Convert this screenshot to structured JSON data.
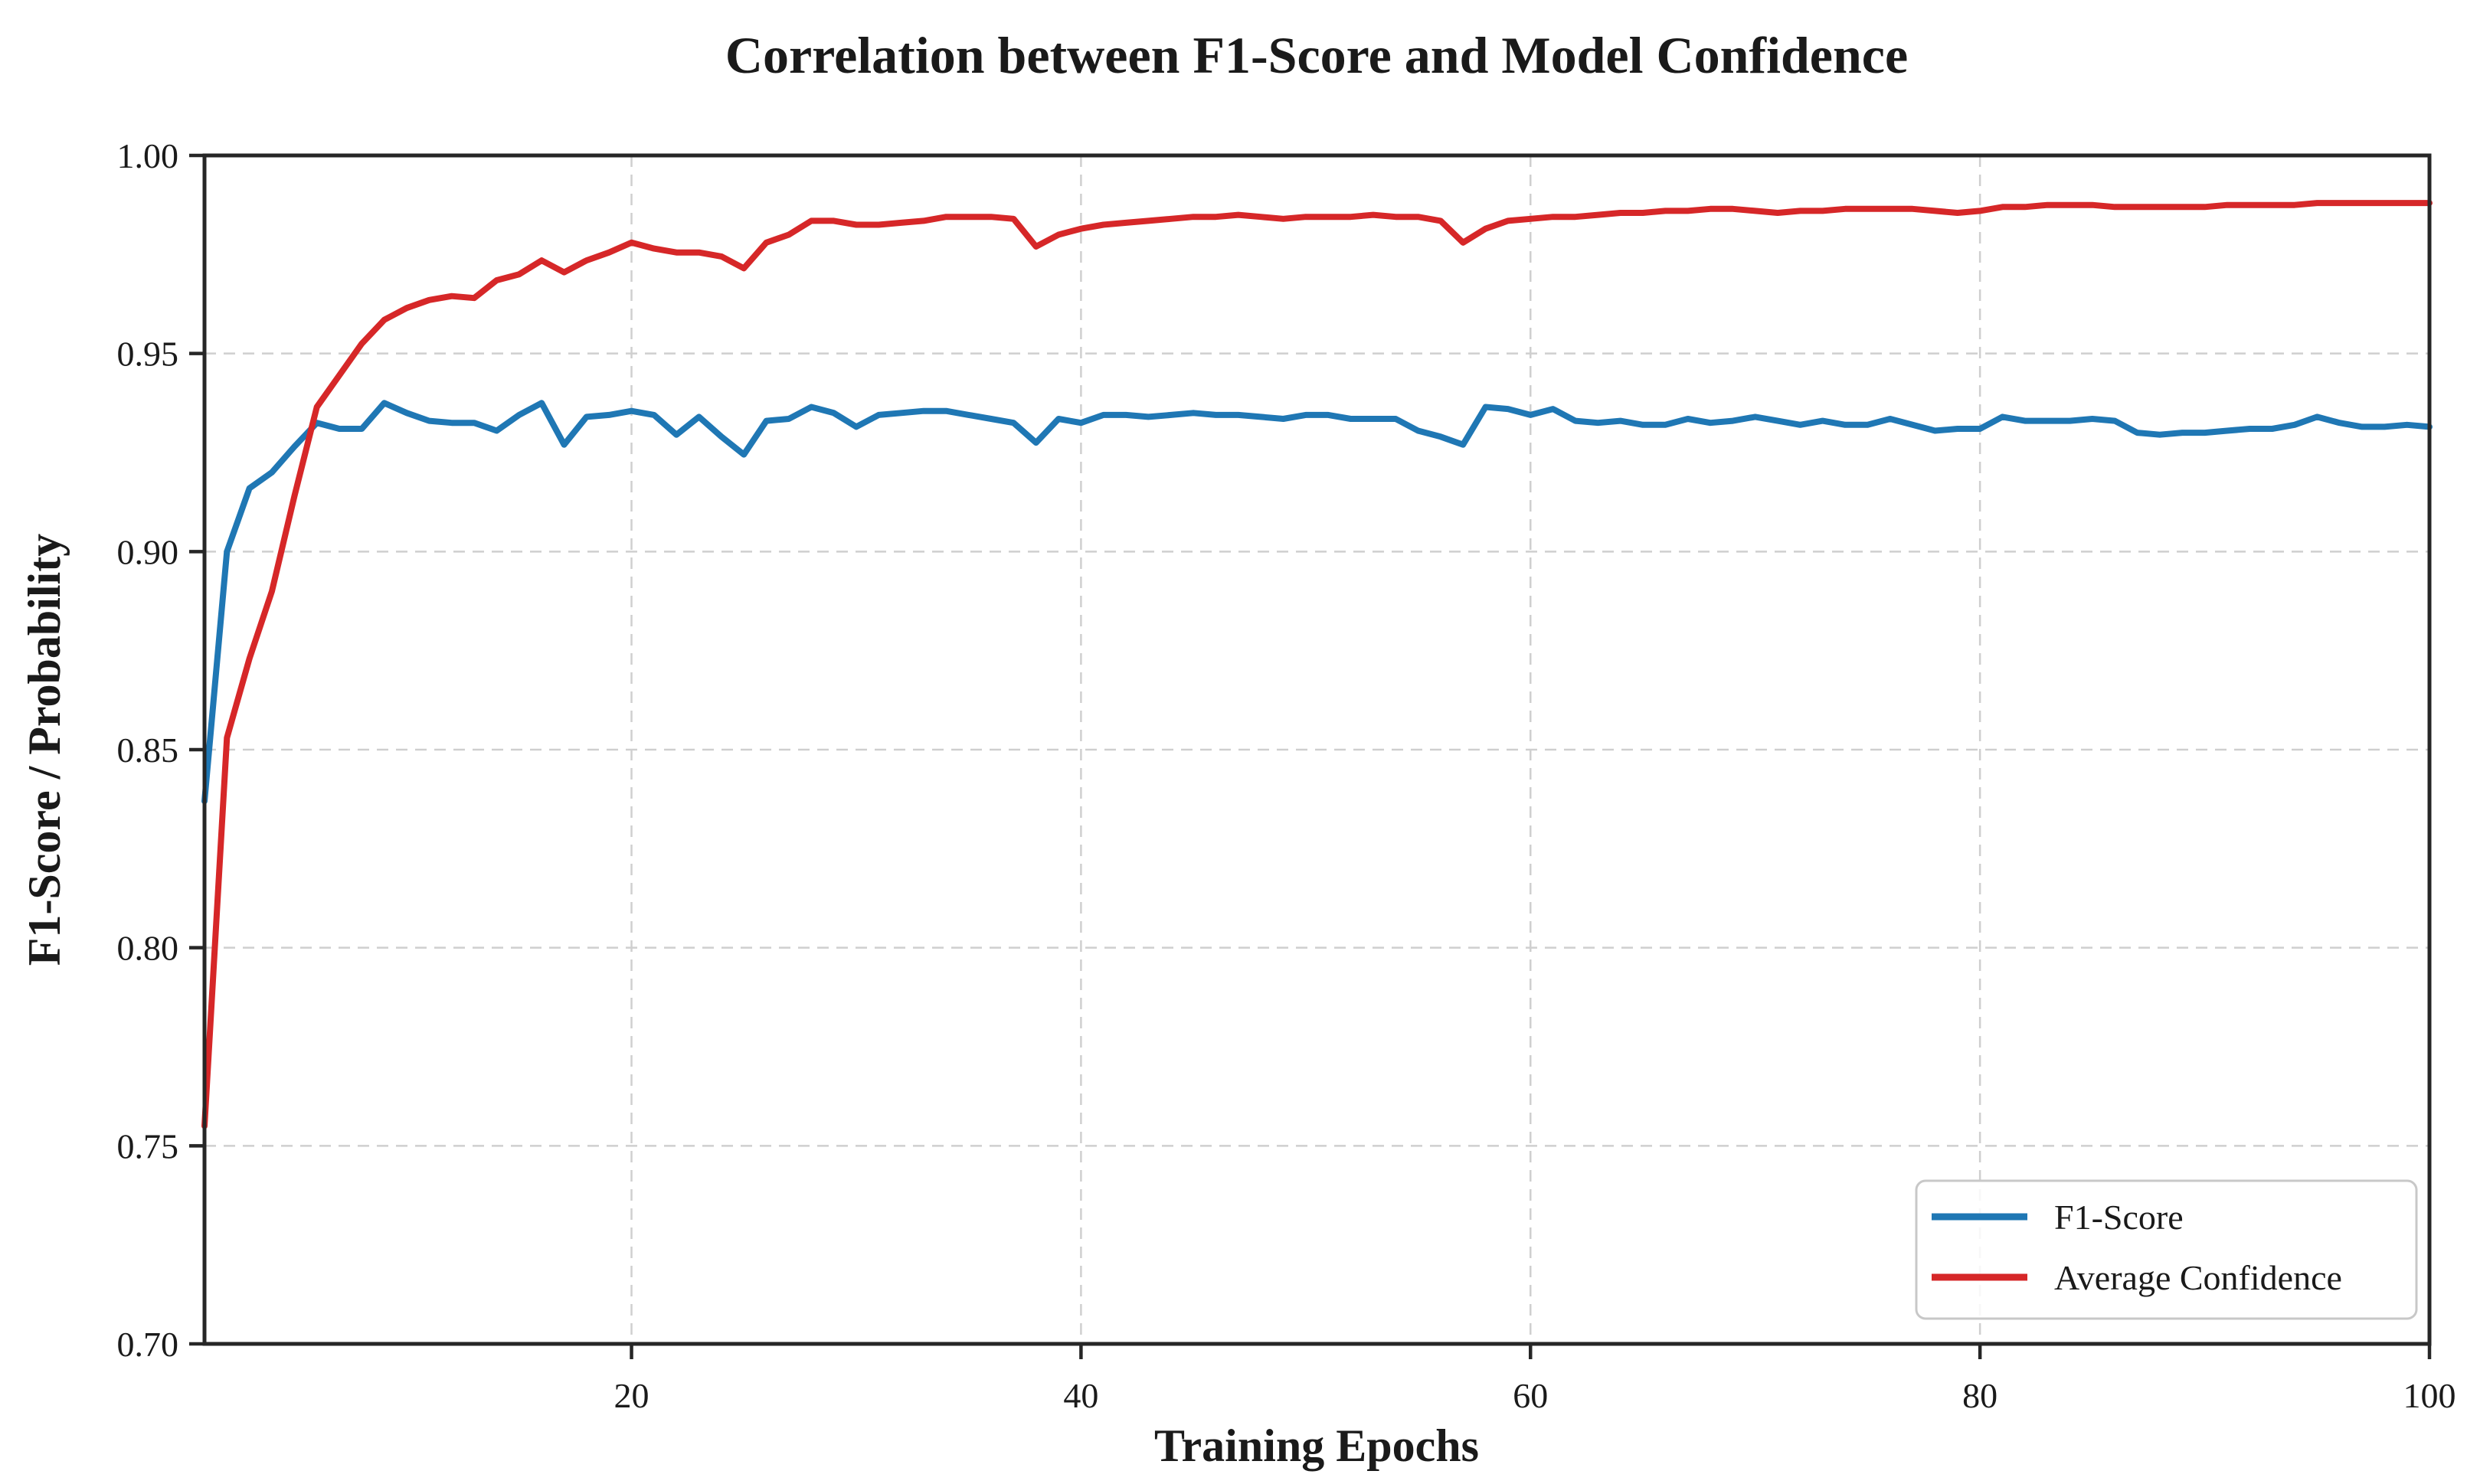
{
  "page": {
    "background": "#ffffff"
  },
  "chart_data": {
    "type": "line",
    "title": "Correlation between F1-Score and Model Confidence",
    "xlabel": "Training Epochs",
    "ylabel": "F1-Score / Probability",
    "xlim": [
      1,
      100
    ],
    "ylim": [
      0.7,
      1.0
    ],
    "xticks": [
      20,
      40,
      60,
      80,
      100
    ],
    "xtick_labels": [
      "20",
      "40",
      "60",
      "80",
      "100"
    ],
    "yticks": [
      0.7,
      0.75,
      0.8,
      0.85,
      0.9,
      0.95,
      1.0
    ],
    "ytick_labels": [
      "0.70",
      "0.75",
      "0.80",
      "0.85",
      "0.90",
      "0.95",
      "1.00"
    ],
    "grid": "dashed",
    "grid_color": "#cfcfcf",
    "axis_color": "#262626",
    "text_color": "#1a1a1a",
    "background_color": "#ffffff",
    "legend_position": "lower right",
    "legend_border_color": "#c8c8c8",
    "legend_background": "rgba(255,255,255,0.85)",
    "x": [
      1,
      2,
      3,
      4,
      5,
      6,
      7,
      8,
      9,
      10,
      11,
      12,
      13,
      14,
      15,
      16,
      17,
      18,
      19,
      20,
      21,
      22,
      23,
      24,
      25,
      26,
      27,
      28,
      29,
      30,
      31,
      32,
      33,
      34,
      35,
      36,
      37,
      38,
      39,
      40,
      41,
      42,
      43,
      44,
      45,
      46,
      47,
      48,
      49,
      50,
      51,
      52,
      53,
      54,
      55,
      56,
      57,
      58,
      59,
      60,
      61,
      62,
      63,
      64,
      65,
      66,
      67,
      68,
      69,
      70,
      71,
      72,
      73,
      74,
      75,
      76,
      77,
      78,
      79,
      80,
      81,
      82,
      83,
      84,
      85,
      86,
      87,
      88,
      89,
      90,
      91,
      92,
      93,
      94,
      95,
      96,
      97,
      98,
      99,
      100
    ],
    "series": [
      {
        "name": "F1-Score",
        "color": "#1f77b4",
        "values": [
          0.837,
          0.9,
          0.916,
          0.92,
          0.9265,
          0.9325,
          0.931,
          0.931,
          0.9375,
          0.935,
          0.933,
          0.9325,
          0.9325,
          0.9305,
          0.9345,
          0.9375,
          0.927,
          0.934,
          0.9345,
          0.9355,
          0.9345,
          0.9295,
          0.934,
          0.929,
          0.9245,
          0.933,
          0.9335,
          0.9365,
          0.935,
          0.9315,
          0.9345,
          0.935,
          0.9355,
          0.9355,
          0.9345,
          0.9335,
          0.9325,
          0.9275,
          0.9335,
          0.9325,
          0.9345,
          0.9345,
          0.934,
          0.9345,
          0.935,
          0.9345,
          0.9345,
          0.934,
          0.9335,
          0.9345,
          0.9345,
          0.9335,
          0.9335,
          0.9335,
          0.9305,
          0.929,
          0.927,
          0.9365,
          0.936,
          0.9345,
          0.936,
          0.933,
          0.9325,
          0.933,
          0.932,
          0.932,
          0.9335,
          0.9325,
          0.933,
          0.934,
          0.933,
          0.932,
          0.933,
          0.932,
          0.932,
          0.9335,
          0.932,
          0.9305,
          0.931,
          0.931,
          0.934,
          0.933,
          0.933,
          0.933,
          0.9335,
          0.933,
          0.93,
          0.9295,
          0.93,
          0.93,
          0.9305,
          0.931,
          0.931,
          0.932,
          0.934,
          0.9325,
          0.9315,
          0.9315,
          0.932,
          0.9315
        ]
      },
      {
        "name": "Average Confidence",
        "color": "#d62728",
        "values": [
          0.755,
          0.853,
          0.873,
          0.89,
          0.914,
          0.9365,
          0.9445,
          0.9525,
          0.9585,
          0.9615,
          0.9635,
          0.9645,
          0.964,
          0.9685,
          0.97,
          0.9735,
          0.9705,
          0.9735,
          0.9755,
          0.978,
          0.9765,
          0.9755,
          0.9755,
          0.9745,
          0.9715,
          0.978,
          0.98,
          0.9835,
          0.9835,
          0.9825,
          0.9825,
          0.983,
          0.9835,
          0.9845,
          0.9845,
          0.9845,
          0.984,
          0.977,
          0.98,
          0.9815,
          0.9825,
          0.983,
          0.9835,
          0.984,
          0.9845,
          0.9845,
          0.985,
          0.9845,
          0.984,
          0.9845,
          0.9845,
          0.9845,
          0.985,
          0.9845,
          0.9845,
          0.9835,
          0.978,
          0.9815,
          0.9835,
          0.984,
          0.9845,
          0.9845,
          0.985,
          0.9855,
          0.9855,
          0.986,
          0.986,
          0.9865,
          0.9865,
          0.986,
          0.9855,
          0.986,
          0.986,
          0.9865,
          0.9865,
          0.9865,
          0.9865,
          0.986,
          0.9855,
          0.986,
          0.987,
          0.987,
          0.9875,
          0.9875,
          0.9875,
          0.987,
          0.987,
          0.987,
          0.987,
          0.987,
          0.9875,
          0.9875,
          0.9875,
          0.9875,
          0.988,
          0.988,
          0.988,
          0.988,
          0.988,
          0.988
        ]
      }
    ]
  }
}
